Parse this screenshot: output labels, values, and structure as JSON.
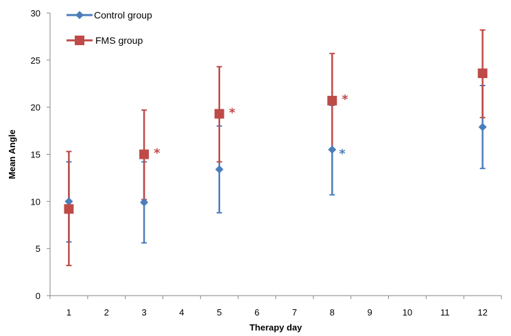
{
  "chart_data": {
    "type": "scatter",
    "title": "",
    "xlabel": "Therapy day",
    "ylabel": "Mean Angle",
    "x_ticks": [
      1,
      2,
      3,
      4,
      5,
      6,
      7,
      8,
      9,
      10,
      11,
      12
    ],
    "x_tick_labels": [
      "1",
      "2",
      "3",
      "4",
      "5",
      "6",
      "7",
      "8",
      "9",
      "10",
      "11",
      "12"
    ],
    "y_ticks": [
      0,
      5,
      10,
      15,
      20,
      25,
      30
    ],
    "y_tick_labels": [
      "0",
      "5",
      "10",
      "15",
      "20",
      "25",
      "30"
    ],
    "ylim": [
      0,
      30
    ],
    "grid": false,
    "legend_position": "top-left",
    "series": [
      {
        "name": "Control group",
        "color": "#4a7ebb",
        "marker": "diamond",
        "x": [
          1,
          3,
          5,
          8,
          12
        ],
        "y": [
          10.0,
          9.9,
          13.4,
          15.5,
          17.9
        ],
        "error_low": [
          5.7,
          5.6,
          8.8,
          10.7,
          13.5
        ],
        "error_high": [
          14.2,
          14.2,
          18.0,
          20.2,
          22.3
        ],
        "significance": [
          "",
          "",
          "",
          "*",
          ""
        ]
      },
      {
        "name": "FMS group",
        "color": "#be4b48",
        "marker": "square",
        "x": [
          1,
          3,
          5,
          8,
          12
        ],
        "y": [
          9.2,
          15.0,
          19.3,
          20.7,
          23.6
        ],
        "error_low": [
          3.2,
          10.2,
          14.2,
          15.5,
          18.9
        ],
        "error_high": [
          15.3,
          19.7,
          24.3,
          25.7,
          28.2
        ],
        "significance": [
          "",
          "*",
          "*",
          "*",
          ""
        ]
      }
    ]
  }
}
